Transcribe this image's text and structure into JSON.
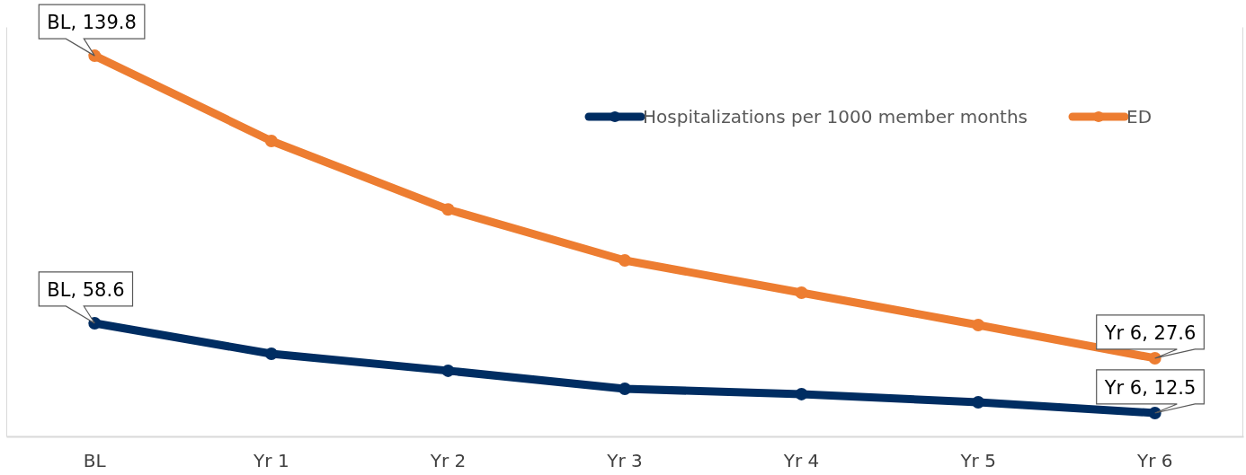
{
  "chart_data": {
    "type": "line",
    "categories": [
      "BL",
      "Yr 1",
      "Yr 2",
      "Yr 3",
      "Yr 4",
      "Yr 5",
      "Yr 6"
    ],
    "series": [
      {
        "name": "Hospitalizations per 1000 member months",
        "color": "#002d62",
        "values": [
          58.6,
          42.9,
          34.2,
          24.9,
          22.2,
          18.0,
          12.5
        ],
        "value_labels": [
          "BL, 58.6",
          null,
          null,
          null,
          null,
          null,
          "Yr 6, 12.5"
        ]
      },
      {
        "name": "ED",
        "color": "#ed7d31",
        "axis": "y2",
        "values": [
          139.8,
          108.2,
          82.8,
          63.9,
          51.9,
          39.9,
          27.6
        ],
        "value_labels": [
          "BL, 139.8",
          null,
          null,
          null,
          null,
          null,
          "Yr 6, 27.6"
        ]
      }
    ],
    "ylim": [
      0.5,
      210.7
    ],
    "y2lim": [
      -1.4,
      150.5
    ],
    "tick_labels": "x",
    "marker": "circle",
    "line_style": "solid",
    "legend": "top right"
  }
}
